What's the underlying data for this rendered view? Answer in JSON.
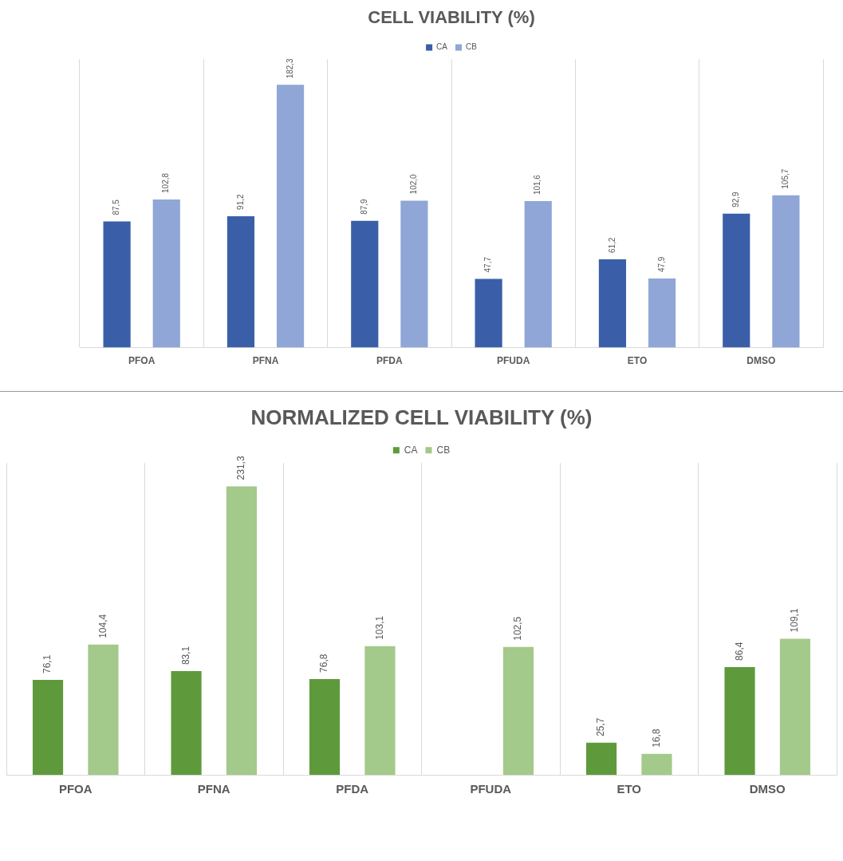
{
  "chart_data": [
    {
      "type": "bar",
      "title": "CELL VIABILITY (%)",
      "categories": [
        "PFOA",
        "PFNA",
        "PFDA",
        "PFUDA",
        "ETO",
        "DMSO"
      ],
      "series": [
        {
          "name": "CA",
          "color": "#3a5fa8",
          "values": [
            87.5,
            91.2,
            87.9,
            47.7,
            61.2,
            92.9
          ],
          "value_labels": [
            "87,5",
            "91,2",
            "87,9",
            "47,7",
            "61,2",
            "92,9"
          ]
        },
        {
          "name": "CB",
          "color": "#8fa6d6",
          "values": [
            102.8,
            182.3,
            102.0,
            101.6,
            47.9,
            105.7
          ],
          "value_labels": [
            "102,8",
            "182,3",
            "102,0",
            "101,6",
            "47,9",
            "105,7"
          ]
        }
      ],
      "ylim": [
        0,
        200
      ],
      "tick_labels": "x",
      "grid": "x",
      "legend": "top"
    },
    {
      "type": "bar",
      "title": "NORMALIZED CELL VIABILITY (%)",
      "categories": [
        "PFOA",
        "PFNA",
        "PFDA",
        "PFUDA",
        "ETO",
        "DMSO"
      ],
      "series": [
        {
          "name": "CA",
          "color": "#5e9a3c",
          "values": [
            76.1,
            83.1,
            76.8,
            null,
            25.7,
            86.4
          ],
          "value_labels": [
            "76,1",
            "83,1",
            "76,8",
            null,
            "25,7",
            "86,4"
          ]
        },
        {
          "name": "CB",
          "color": "#a3c98b",
          "values": [
            104.4,
            231.3,
            103.1,
            102.5,
            16.8,
            109.1
          ],
          "value_labels": [
            "104,4",
            "231,3",
            "103,1",
            "102,5",
            "16,8",
            "109,1"
          ]
        }
      ],
      "ylim": [
        0,
        250
      ],
      "tick_labels": "x",
      "grid": "x",
      "legend": "top"
    }
  ]
}
